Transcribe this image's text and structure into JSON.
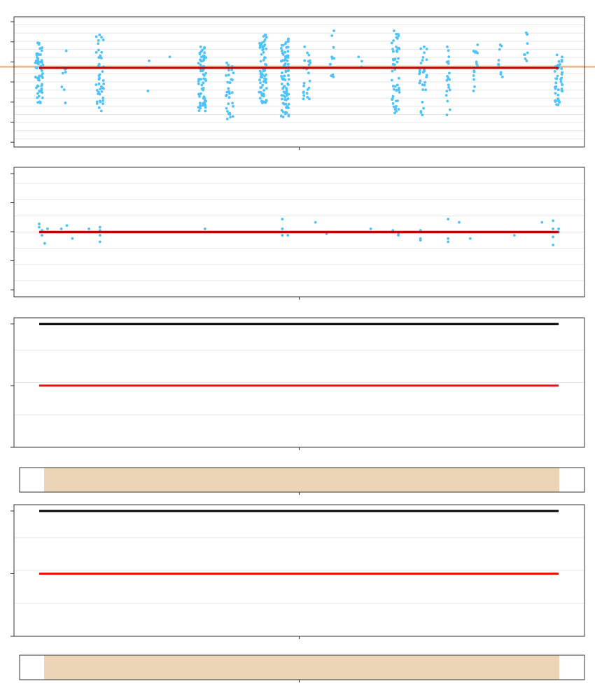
{
  "chart_data": [
    {
      "type": "scatter",
      "title": "",
      "xlabel": "",
      "ylabel": "",
      "xlim": [
        0,
        100
      ],
      "ylim": [
        -4,
        2.5
      ],
      "grid": true,
      "colors": {
        "points": "#4fc3f7",
        "baseline": "#f4a460",
        "trend": "#c00000"
      },
      "baseline_y": 0.0,
      "trend_y": -0.05,
      "point_clusters": [
        {
          "x": 5,
          "y_range": [
            -1.8,
            1.2
          ],
          "n": 60
        },
        {
          "x": 9.5,
          "y_range": [
            -1.8,
            0.8
          ],
          "n": 10
        },
        {
          "x": 16,
          "y_range": [
            -2.2,
            1.6
          ],
          "n": 45
        },
        {
          "x": 24.5,
          "y_range": [
            -1.2,
            0.3
          ],
          "n": 3
        },
        {
          "x": 28.5,
          "y_range": [
            0.5,
            0.6
          ],
          "n": 1
        },
        {
          "x": 34.5,
          "y_range": [
            -2.2,
            1.0
          ],
          "n": 70
        },
        {
          "x": 39.5,
          "y_range": [
            -2.6,
            0.2
          ],
          "n": 35
        },
        {
          "x": 45.5,
          "y_range": [
            -1.8,
            1.6
          ],
          "n": 70
        },
        {
          "x": 49.5,
          "y_range": [
            -2.5,
            1.4
          ],
          "n": 90
        },
        {
          "x": 53.5,
          "y_range": [
            -1.6,
            1.0
          ],
          "n": 25
        },
        {
          "x": 58,
          "y_range": [
            -0.5,
            1.8
          ],
          "n": 12
        },
        {
          "x": 63,
          "y_range": [
            0.0,
            0.5
          ],
          "n": 3
        },
        {
          "x": 69.5,
          "y_range": [
            -2.3,
            1.8
          ],
          "n": 50
        },
        {
          "x": 74.5,
          "y_range": [
            -2.4,
            1.0
          ],
          "n": 30
        },
        {
          "x": 79,
          "y_range": [
            -2.4,
            1.0
          ],
          "n": 20
        },
        {
          "x": 84,
          "y_range": [
            -1.2,
            1.1
          ],
          "n": 15
        },
        {
          "x": 88.5,
          "y_range": [
            -0.5,
            1.1
          ],
          "n": 10
        },
        {
          "x": 93,
          "y_range": [
            0.3,
            1.7
          ],
          "n": 8
        },
        {
          "x": 99,
          "y_range": [
            -1.9,
            0.6
          ],
          "n": 45
        }
      ]
    },
    {
      "type": "scatter",
      "title": "",
      "xlabel": "",
      "ylabel": "",
      "xlim": [
        0,
        100
      ],
      "ylim": [
        -4,
        4
      ],
      "grid": true,
      "colors": {
        "points": "#4fc3f7",
        "trend": "#c00000"
      },
      "trend_y": 0.0,
      "points": [
        [
          5,
          0.5
        ],
        [
          5,
          0.3
        ],
        [
          5.5,
          -0.2
        ],
        [
          5.5,
          0.1
        ],
        [
          6,
          -0.7
        ],
        [
          6.5,
          0.2
        ],
        [
          9,
          0.2
        ],
        [
          10,
          0.4
        ],
        [
          11,
          -0.4
        ],
        [
          14,
          0.2
        ],
        [
          16,
          0.3
        ],
        [
          16,
          0.1
        ],
        [
          16,
          -0.2
        ],
        [
          16,
          -0.6
        ],
        [
          35,
          0.2
        ],
        [
          36,
          0.0
        ],
        [
          49,
          0.8
        ],
        [
          49,
          0.2
        ],
        [
          49,
          -0.2
        ],
        [
          50,
          -0.2
        ],
        [
          55,
          0.6
        ],
        [
          57,
          -0.1
        ],
        [
          65,
          0.2
        ],
        [
          69,
          0.1
        ],
        [
          70,
          -0.1
        ],
        [
          70,
          -0.2
        ],
        [
          74,
          0.1
        ],
        [
          74,
          -0.4
        ],
        [
          74,
          -0.5
        ],
        [
          77,
          0.0
        ],
        [
          79,
          0.8
        ],
        [
          79,
          -0.4
        ],
        [
          79,
          -0.6
        ],
        [
          81,
          0.6
        ],
        [
          83,
          0.0
        ],
        [
          83,
          -0.4
        ],
        [
          91,
          -0.2
        ],
        [
          96,
          0.6
        ],
        [
          98,
          0.2
        ],
        [
          98,
          -0.3
        ],
        [
          98,
          0.7
        ],
        [
          98,
          -0.8
        ],
        [
          99,
          0.2
        ],
        [
          99,
          0.0
        ]
      ]
    },
    {
      "type": "line",
      "title": "",
      "xlabel": "",
      "ylabel": "",
      "xlim": [
        0,
        100
      ],
      "ylim": [
        0,
        2.1
      ],
      "grid": true,
      "series": [
        {
          "color": "#000000",
          "x": [
            5,
            99
          ],
          "y": [
            2,
            2
          ]
        },
        {
          "color": "#e8120c",
          "x": [
            5,
            99
          ],
          "y": [
            1,
            1
          ]
        }
      ]
    },
    {
      "type": "area",
      "title": "",
      "xlabel": "",
      "ylabel": "",
      "xlim": [
        0,
        100
      ],
      "grid": false,
      "colors": {
        "band": "#ecd5b7"
      },
      "band": [
        5,
        99
      ]
    },
    {
      "type": "line",
      "title": "",
      "xlabel": "",
      "ylabel": "",
      "xlim": [
        0,
        100
      ],
      "ylim": [
        0,
        2.1
      ],
      "grid": true,
      "series": [
        {
          "color": "#000000",
          "x": [
            5,
            99
          ],
          "y": [
            2,
            2
          ]
        },
        {
          "color": "#e8120c",
          "x": [
            5,
            99
          ],
          "y": [
            1,
            1
          ]
        }
      ]
    },
    {
      "type": "area",
      "title": "",
      "xlabel": "",
      "ylabel": "",
      "xlim": [
        0,
        100
      ],
      "grid": false,
      "colors": {
        "band": "#ecd5b7"
      },
      "band": [
        5,
        99
      ]
    }
  ]
}
